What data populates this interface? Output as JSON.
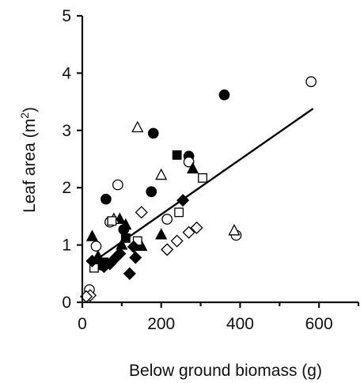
{
  "chart_data": {
    "type": "scatter",
    "xlabel": "Below ground biomass (g)",
    "ylabel": "Leaf area (m",
    "ylabel_sup": "2",
    "ylabel_close": ")",
    "xlim": [
      0,
      700
    ],
    "ylim": [
      0,
      5
    ],
    "xticks": [
      0,
      200,
      400,
      600
    ],
    "yticks": [
      0,
      1,
      2,
      3,
      4,
      5
    ],
    "xtick_labels": [
      "0",
      "200",
      "400",
      "600"
    ],
    "ytick_labels": [
      "0",
      "1",
      "2",
      "3",
      "4",
      "5"
    ],
    "grid": false,
    "legend": "none",
    "fit_line": {
      "x": [
        20,
        585
      ],
      "y": [
        0.67,
        3.38
      ]
    },
    "series": [
      {
        "marker": "filled-circle",
        "points": [
          [
            60,
            1.8
          ],
          [
            180,
            2.95
          ],
          [
            175,
            1.93
          ],
          [
            270,
            2.55
          ],
          [
            360,
            3.62
          ],
          [
            105,
            1.27
          ],
          [
            48,
            0.65
          ]
        ]
      },
      {
        "marker": "open-circle",
        "points": [
          [
            18,
            0.22
          ],
          [
            35,
            0.98
          ],
          [
            90,
            2.05
          ],
          [
            215,
            1.45
          ],
          [
            270,
            2.45
          ],
          [
            390,
            1.17
          ],
          [
            580,
            3.85
          ],
          [
            70,
            1.4
          ]
        ]
      },
      {
        "marker": "filled-triangle",
        "points": [
          [
            25,
            1.15
          ],
          [
            40,
            0.8
          ],
          [
            95,
            1.45
          ],
          [
            110,
            1.35
          ],
          [
            150,
            0.98
          ],
          [
            200,
            1.18
          ],
          [
            280,
            2.33
          ],
          [
            100,
            1.0
          ]
        ]
      },
      {
        "marker": "open-triangle",
        "points": [
          [
            140,
            3.05
          ],
          [
            200,
            2.22
          ],
          [
            80,
            1.45
          ],
          [
            385,
            1.25
          ]
        ]
      },
      {
        "marker": "filled-square",
        "points": [
          [
            240,
            2.57
          ],
          [
            110,
            1.12
          ],
          [
            55,
            0.7
          ]
        ]
      },
      {
        "marker": "open-square",
        "points": [
          [
            140,
            1.07
          ],
          [
            245,
            1.57
          ],
          [
            305,
            2.17
          ],
          [
            75,
            1.42
          ],
          [
            30,
            0.6
          ]
        ]
      },
      {
        "marker": "filled-diamond",
        "points": [
          [
            25,
            0.72
          ],
          [
            55,
            0.62
          ],
          [
            70,
            0.67
          ],
          [
            85,
            0.78
          ],
          [
            95,
            0.85
          ],
          [
            130,
            0.97
          ],
          [
            135,
            0.78
          ],
          [
            120,
            0.5
          ],
          [
            255,
            1.78
          ]
        ]
      },
      {
        "marker": "open-diamond",
        "points": [
          [
            150,
            1.57
          ],
          [
            215,
            0.92
          ],
          [
            240,
            1.07
          ],
          [
            270,
            1.22
          ],
          [
            290,
            1.3
          ],
          [
            20,
            0.12
          ],
          [
            10,
            0.1
          ]
        ]
      }
    ]
  }
}
